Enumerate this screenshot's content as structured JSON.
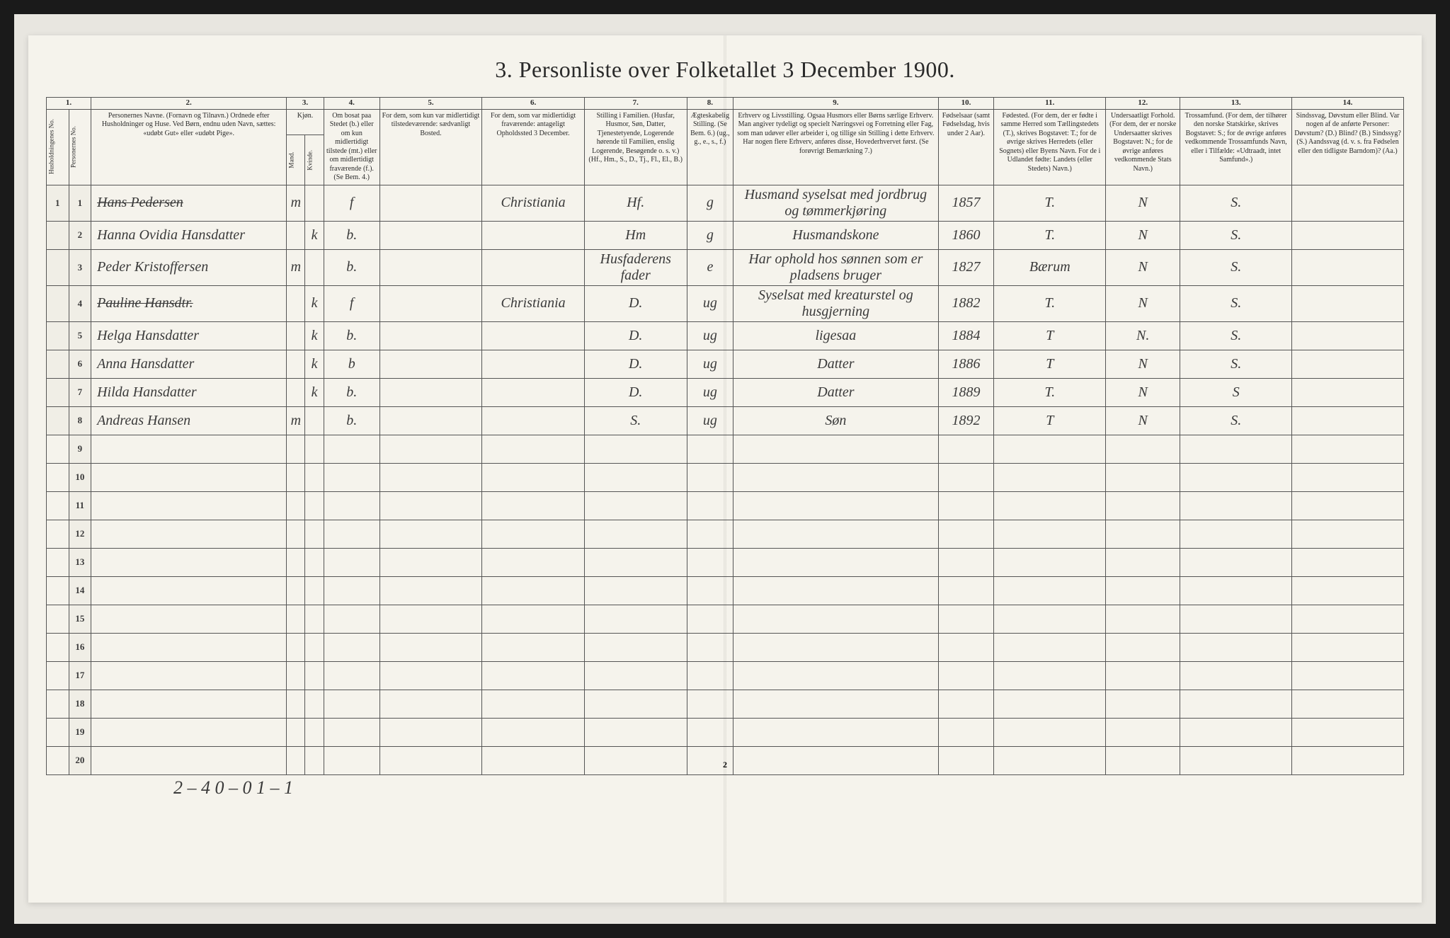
{
  "title": "3.  Personliste over Folketallet 3 December 1900.",
  "page_number": "2",
  "columns": {
    "nums": [
      "1.",
      "2.",
      "3.",
      "4.",
      "5.",
      "6.",
      "7.",
      "8.",
      "9.",
      "10.",
      "11.",
      "12.",
      "13.",
      "14."
    ],
    "h1": "Husholdningenes No.",
    "h1b": "Personernes No.",
    "h2": "Personernes Navne.\n(Fornavn og Tilnavn.)\nOrdnede efter Husholdninger og Huse.\nVed Børn, endnu uden Navn, sættes: «udøbt Gut» eller «udøbt Pige».",
    "h3": "Kjøn.",
    "h3a": "Mand.",
    "h3b": "Kvinde.",
    "h4": "Om bosat paa Stedet (b.) eller om kun midlertidigt tilstede (mt.) eller om midlertidigt fraværende (f.). (Se Bem. 4.)",
    "h5": "For dem, som kun var midlertidigt tilstedeværende:\nsædvanligt Bosted.",
    "h6": "For dem, som var midlertidigt fraværende:\nantageligt Opholdssted 3 December.",
    "h7": "Stilling i Familien.\n(Husfar, Husmor, Søn, Datter, Tjenestetyende, Logerende hørende til Familien, enslig Logerende, Besøgende o. s. v.)\n(Hf., Hm., S., D., Tj., Fl., El., B.)",
    "h8": "Ægteskabelig Stilling.\n(Se Bem. 6.)\n(ug., g., e., s., f.)",
    "h9": "Erhverv og Livsstilling.\nOgsaa Husmors eller Børns særlige Erhverv.\nMan angiver tydeligt og specielt Næringsvei og Forretning eller Fag, som man udøver eller arbeider i, og tillige sin Stilling i dette Erhverv.\nHar nogen flere Erhverv, anføres disse, Hovederhvervet først.\n(Se forøvrigt Bemærkning 7.)",
    "h10": "Fødselsaar\n(samt Fødselsdag, hvis under 2 Aar).",
    "h11": "Fødested.\n(For dem, der er fødte i samme Herred som Tællingstedets (T.), skrives Bogstavet: T.; for de øvrige skrives Herredets (eller Sognets) eller Byens Navn.\nFor de i Udlandet fødte: Landets (eller Stedets) Navn.)",
    "h12": "Undersaatligt Forhold.\n(For dem, der er norske Undersaatter skrives Bogstavet: N.; for de øvrige anføres vedkommende Stats Navn.)",
    "h13": "Trossamfund.\n(For dem, der tilhører den norske Statskirke, skrives Bogstavet: S.; for de øvrige anføres vedkommende Trossamfunds Navn, eller i Tilfælde: «Udtraadt, intet Samfund».)",
    "h14": "Sindssvag, Døvstum eller Blind.\nVar nogen af de anførte Personer:\nDøvstum? (D.)\nBlind? (B.)\nSindssyg? (S.)\nAandssvag (d. v. s. fra Fødselen eller den tidligste Barndom)? (Aa.)"
  },
  "widths": {
    "c1": 24,
    "c1b": 24,
    "c2": 210,
    "c3a": 20,
    "c3b": 20,
    "c4": 60,
    "c5": 110,
    "c6": 110,
    "c7": 110,
    "c8": 50,
    "c9": 220,
    "c10": 60,
    "c11": 120,
    "c12": 80,
    "c13": 120,
    "c14": 120
  },
  "rows": [
    {
      "n": "1",
      "hh": "1",
      "name": "Hans Pedersen",
      "mk": "m",
      "kk": "",
      "b": "f",
      "c5": "",
      "c6": "Christiania",
      "c7": "Hf.",
      "c8": "g",
      "c9": "Husmand syselsat med jordbrug og tømmerkjøring",
      "c10": "1857",
      "c11": "T.",
      "c12": "N",
      "c13": "S.",
      "c14": "",
      "struck": true
    },
    {
      "n": "2",
      "hh": "",
      "name": "Hanna Ovidia Hansdatter",
      "mk": "",
      "kk": "k",
      "b": "b.",
      "c5": "",
      "c6": "",
      "c7": "Hm",
      "c8": "g",
      "c9": "Husmandskone",
      "c10": "1860",
      "c11": "T.",
      "c12": "N",
      "c13": "S.",
      "c14": ""
    },
    {
      "n": "3",
      "hh": "",
      "name": "Peder Kristoffersen",
      "mk": "m",
      "kk": "",
      "b": "b.",
      "c5": "",
      "c6": "",
      "c7": "Husfaderens fader",
      "c8": "e",
      "c9": "Har ophold hos sønnen som er pladsens bruger",
      "c10": "1827",
      "c11": "Bærum",
      "c12": "N",
      "c13": "S.",
      "c14": ""
    },
    {
      "n": "4",
      "hh": "",
      "name": "Pauline Hansdtr.",
      "mk": "",
      "kk": "k",
      "b": "f",
      "c5": "",
      "c6": "Christiania",
      "c7": "D.",
      "c8": "ug",
      "c9": "Syselsat med kreaturstel og husgjerning",
      "c10": "1882",
      "c11": "T.",
      "c12": "N",
      "c13": "S.",
      "c14": "",
      "struck": true
    },
    {
      "n": "5",
      "hh": "",
      "name": "Helga Hansdatter",
      "mk": "",
      "kk": "k",
      "b": "b.",
      "c5": "",
      "c6": "",
      "c7": "D.",
      "c8": "ug",
      "c9": "ligesaa",
      "c10": "1884",
      "c11": "T",
      "c12": "N.",
      "c13": "S.",
      "c14": ""
    },
    {
      "n": "6",
      "hh": "",
      "name": "Anna Hansdatter",
      "mk": "",
      "kk": "k",
      "b": "b",
      "c5": "",
      "c6": "",
      "c7": "D.",
      "c8": "ug",
      "c9": "Datter",
      "c10": "1886",
      "c11": "T",
      "c12": "N",
      "c13": "S.",
      "c14": ""
    },
    {
      "n": "7",
      "hh": "",
      "name": "Hilda Hansdatter",
      "mk": "",
      "kk": "k",
      "b": "b.",
      "c5": "",
      "c6": "",
      "c7": "D.",
      "c8": "ug",
      "c9": "Datter",
      "c10": "1889",
      "c11": "T.",
      "c12": "N",
      "c13": "S",
      "c14": ""
    },
    {
      "n": "8",
      "hh": "",
      "name": "Andreas Hansen",
      "mk": "m",
      "kk": "",
      "b": "b.",
      "c5": "",
      "c6": "",
      "c7": "S.",
      "c8": "ug",
      "c9": "Søn",
      "c10": "1892",
      "c11": "T",
      "c12": "N",
      "c13": "S.",
      "c14": ""
    }
  ],
  "empty_rows": [
    "9",
    "10",
    "11",
    "12",
    "13",
    "14",
    "15",
    "16",
    "17",
    "18",
    "19",
    "20"
  ],
  "footer": "2 – 4    0 – 0    1 – 1",
  "colors": {
    "bg": "#1a1a1a",
    "scan": "#e8e6e0",
    "paper": "#f5f3ec",
    "ink": "#2a2a2a",
    "hand": "#3a3a3a",
    "rule": "#555"
  }
}
